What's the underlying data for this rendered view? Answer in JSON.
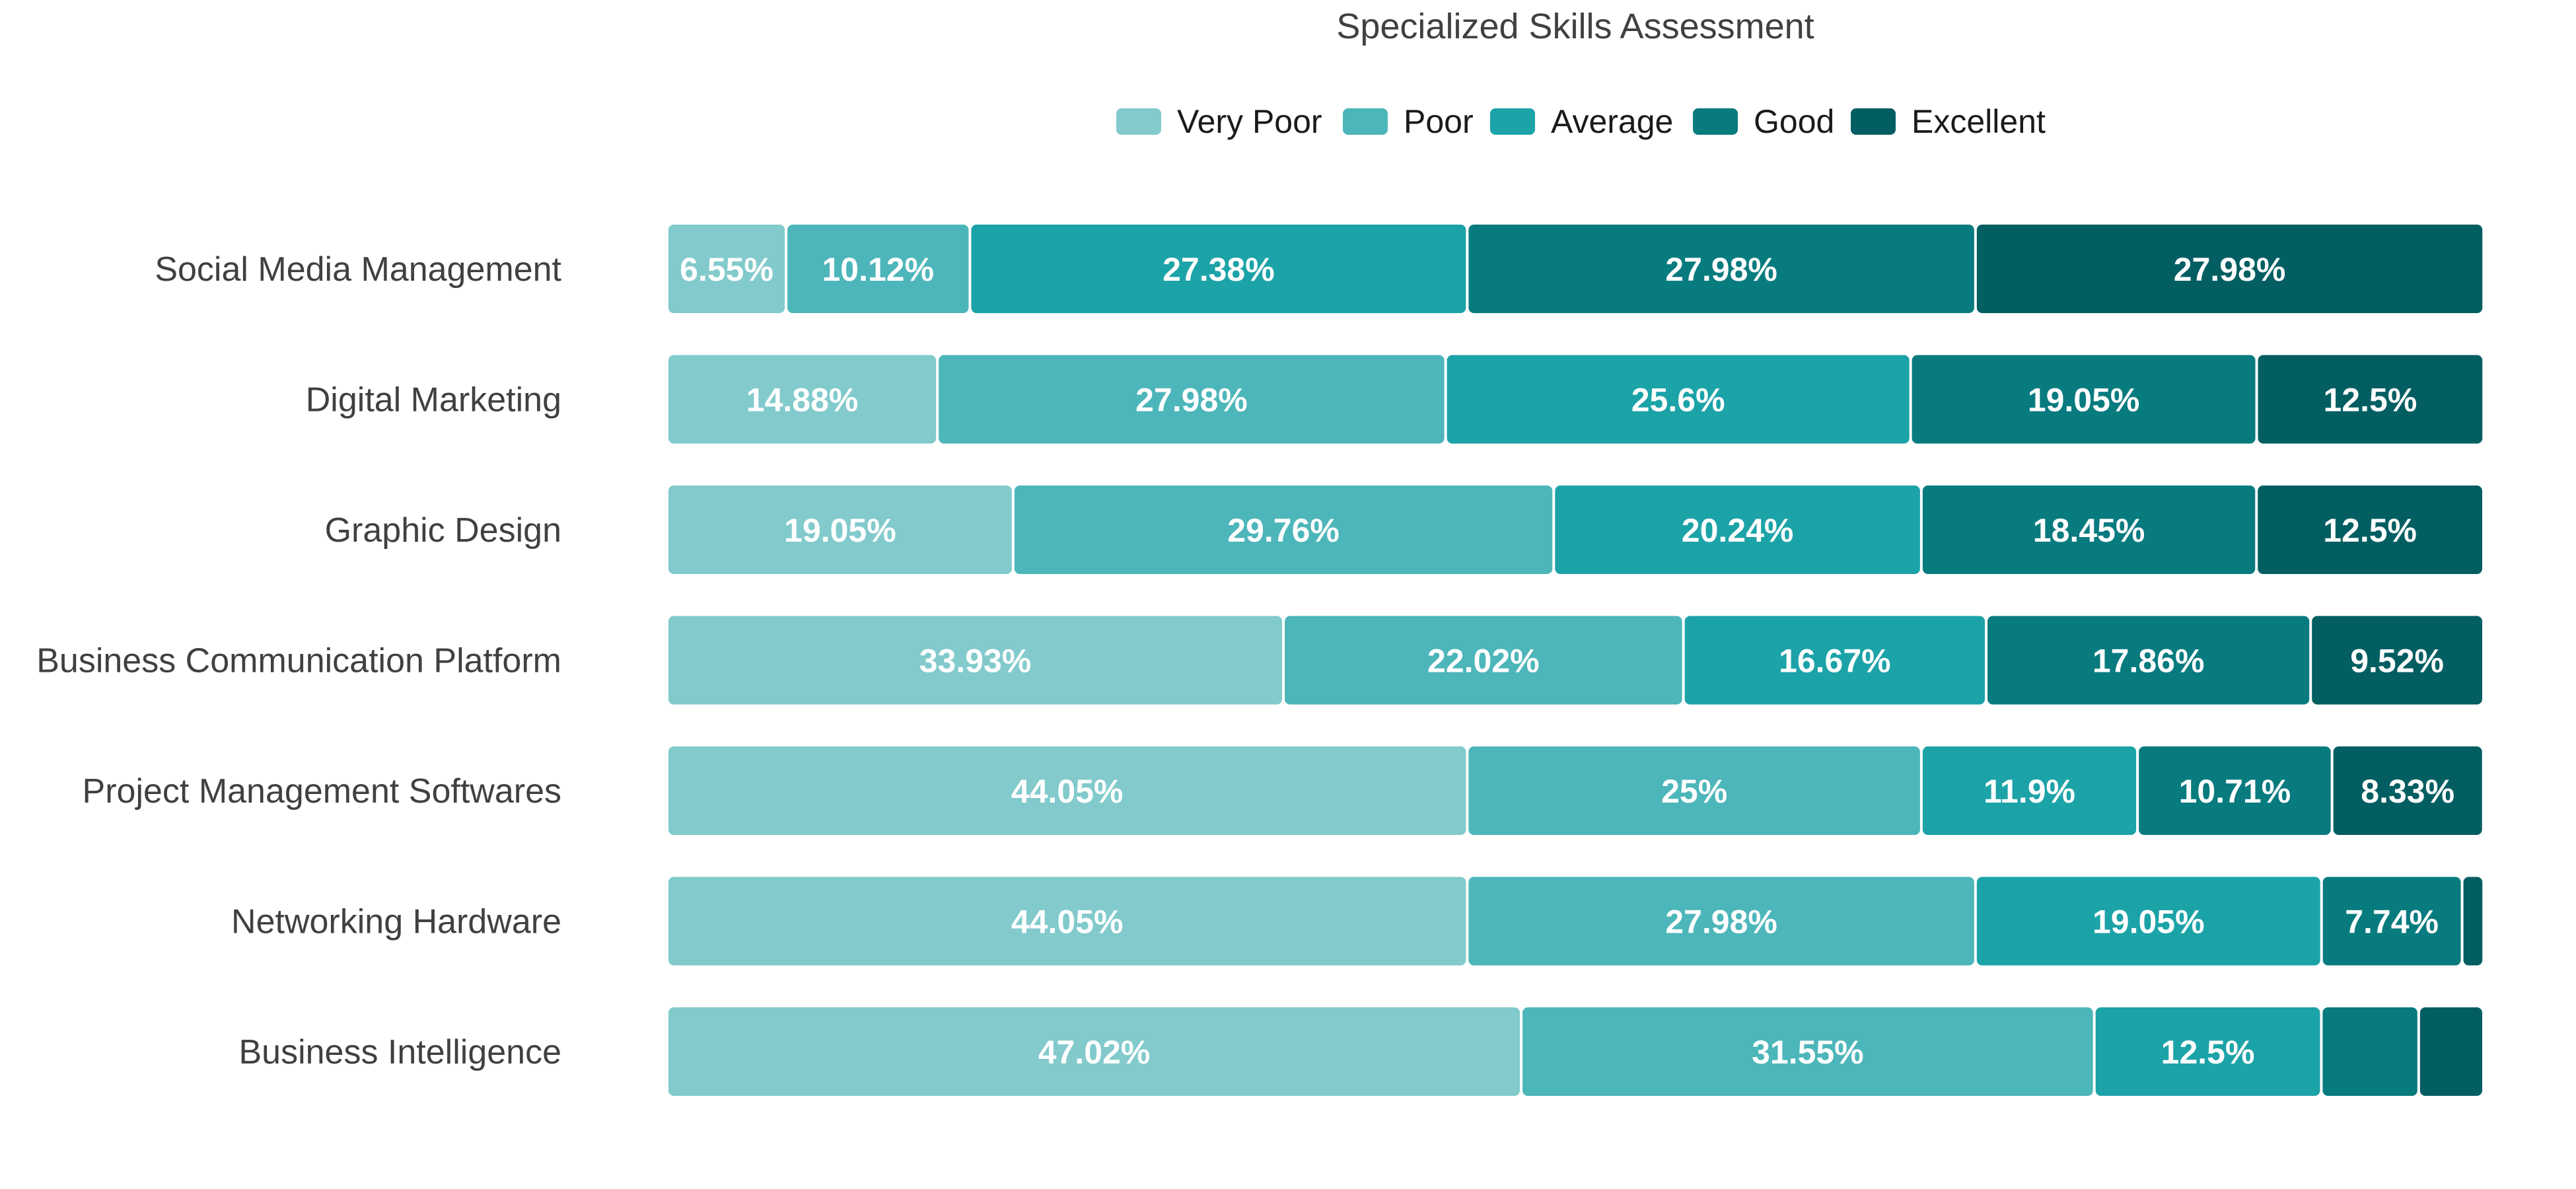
{
  "chart_data": {
    "type": "bar",
    "orientation": "horizontal",
    "stacked": true,
    "title": "Specialized Skills Assessment",
    "legend_position": "top",
    "categories": [
      "Social Media Management",
      "Digital Marketing",
      "Graphic Design",
      "Business Communication Platform",
      "Project Management Softwares",
      "Networking Hardware",
      "Business Intelligence"
    ],
    "series": [
      {
        "name": "Very Poor",
        "color": "#82cacc",
        "values": [
          6.55,
          14.88,
          19.05,
          33.93,
          44.05,
          44.05,
          47.02
        ],
        "labels": [
          "6.55%",
          "14.88%",
          "19.05%",
          "33.93%",
          "44.05%",
          "44.05%",
          "47.02%"
        ]
      },
      {
        "name": "Poor",
        "color": "#4db6ba",
        "values": [
          10.12,
          27.98,
          29.76,
          22.02,
          25,
          27.98,
          31.55
        ],
        "labels": [
          "10.12%",
          "27.98%",
          "29.76%",
          "22.02%",
          "25%",
          "27.98%",
          "31.55%"
        ]
      },
      {
        "name": "Average",
        "color": "#1ca3a8",
        "values": [
          27.38,
          25.6,
          20.24,
          16.67,
          11.9,
          19.05,
          12.5
        ],
        "labels": [
          "27.38%",
          "25.6%",
          "20.24%",
          "16.67%",
          "11.9%",
          "19.05%",
          "12.5%"
        ]
      },
      {
        "name": "Good",
        "color": "#087b7f",
        "values": [
          27.98,
          19.05,
          18.45,
          17.86,
          10.71,
          7.74,
          5.36
        ],
        "labels": [
          "27.98%",
          "19.05%",
          "18.45%",
          "17.86%",
          "10.71%",
          "7.74%",
          ""
        ]
      },
      {
        "name": "Excellent",
        "color": "#035e62",
        "values": [
          27.98,
          12.5,
          12.5,
          9.52,
          8.33,
          1.19,
          3.57
        ],
        "labels": [
          "27.98%",
          "12.5%",
          "12.5%",
          "9.52%",
          "8.33%",
          "",
          ""
        ]
      }
    ],
    "xlim": [
      0,
      100
    ],
    "grid": false
  }
}
